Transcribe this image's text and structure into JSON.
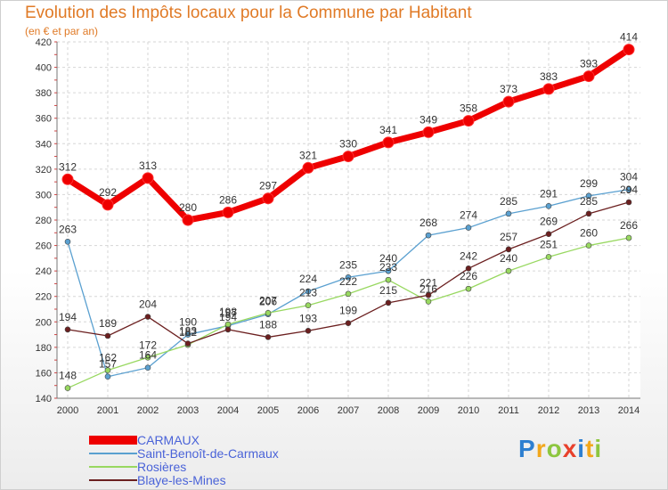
{
  "header": {
    "title": "Evolution des Impôts locaux pour la Commune par Habitant",
    "subtitle": "(en € et par an)"
  },
  "logo": {
    "text": "Proxiti",
    "colors": [
      "#2e7fd0",
      "#f2a71b",
      "#8dc63f",
      "#e8412c",
      "#2e7fd0",
      "#f2a71b",
      "#8dc63f"
    ]
  },
  "chart_data": {
    "type": "line",
    "x": [
      "2000",
      "2001",
      "2002",
      "2003",
      "2004",
      "2005",
      "2006",
      "2007",
      "2008",
      "2009",
      "2010",
      "2011",
      "2012",
      "2013",
      "2014"
    ],
    "ylim": [
      140,
      420
    ],
    "yticks": [
      140,
      160,
      180,
      200,
      220,
      240,
      260,
      280,
      300,
      320,
      340,
      360,
      380,
      400,
      420
    ],
    "grid": true,
    "legend_position": "bottom-left",
    "series": [
      {
        "name": "CARMAUX",
        "color": "#ee0000",
        "values": [
          312,
          292,
          313,
          280,
          286,
          297,
          321,
          330,
          341,
          349,
          358,
          373,
          383,
          393,
          414
        ]
      },
      {
        "name": "Saint-Benoît-de-Carmaux",
        "color": "#5aa0d0",
        "values": [
          263,
          157,
          164,
          190,
          197,
          206,
          224,
          235,
          240,
          268,
          274,
          285,
          291,
          299,
          304
        ]
      },
      {
        "name": "Rosières",
        "color": "#98d860",
        "values": [
          148,
          162,
          172,
          182,
          198,
          207,
          213,
          222,
          233,
          216,
          226,
          240,
          251,
          260,
          266
        ]
      },
      {
        "name": "Blaye-les-Mines",
        "color": "#6b1f1f",
        "values": [
          194,
          189,
          204,
          183,
          194,
          188,
          193,
          199,
          215,
          221,
          242,
          257,
          269,
          285,
          294
        ]
      }
    ]
  }
}
